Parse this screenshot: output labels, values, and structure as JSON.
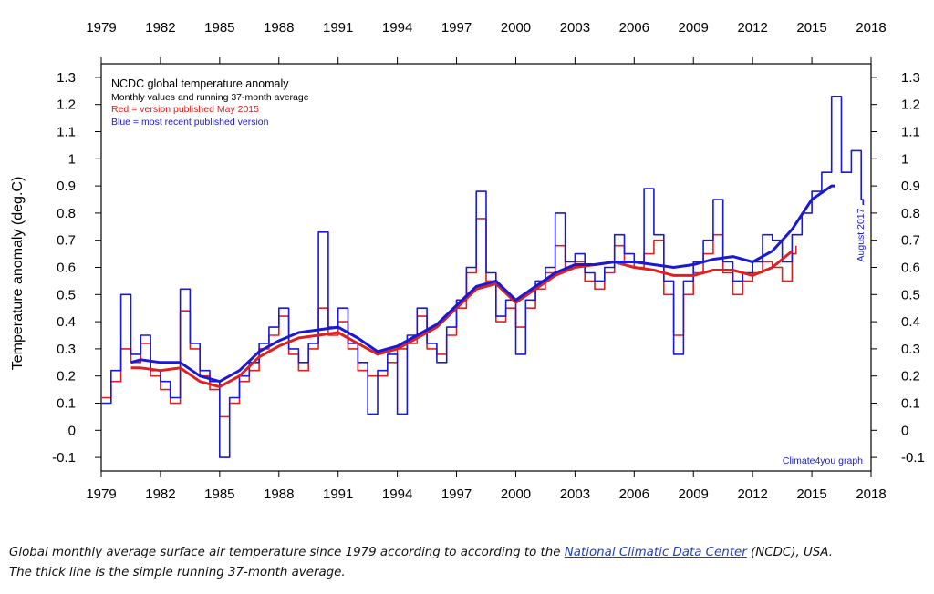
{
  "chart_data": {
    "type": "line",
    "title": "NCDC global temperature anomaly",
    "subtitle": "Monthly values and running 37-month average",
    "legend_notes": [
      {
        "text": "Red = version published May 2015",
        "color": "#e02020"
      },
      {
        "text": "Blue = most recent published version",
        "color": "#1a1ad6"
      }
    ],
    "ylabel": "Temperature anomaly (deg.C)",
    "xlim": [
      1979,
      2018
    ],
    "ylim": [
      -0.15,
      1.35
    ],
    "x_ticks": [
      1979,
      1982,
      1985,
      1988,
      1991,
      1994,
      1997,
      2000,
      2003,
      2006,
      2009,
      2012,
      2015,
      2018
    ],
    "x_tick_labels": [
      "1979",
      "1982",
      "1985",
      "1988",
      "1991",
      "1994",
      "1997",
      "2000",
      "2003",
      "2006",
      "2009",
      "2012",
      "2015",
      "2018"
    ],
    "y_ticks": [
      -0.1,
      0,
      0.1,
      0.2,
      0.3,
      0.4,
      0.5,
      0.6,
      0.7,
      0.8,
      0.9,
      1.0,
      1.1,
      1.2,
      1.3
    ],
    "y_tick_labels": [
      "-0.1",
      "0",
      "0.1",
      "0.2",
      "0.3",
      "0.4",
      "0.5",
      "0.6",
      "0.7",
      "0.8",
      "0.9",
      "1",
      "1.1",
      "1.2",
      "1.3"
    ],
    "grid": false,
    "end_label": "August 2017",
    "credit": "Climate4you graph",
    "series": [
      {
        "color": "#e02020",
        "style": "monthly",
        "x": [
          1979,
          1979.5,
          1980,
          1980.5,
          1981,
          1981.5,
          1982,
          1982.5,
          1983,
          1983.5,
          1984,
          1984.5,
          1985,
          1985.5,
          1986,
          1986.5,
          1987,
          1987.5,
          1988,
          1988.5,
          1989,
          1989.5,
          1990,
          1990.5,
          1991,
          1991.5,
          1992,
          1992.5,
          1993,
          1993.5,
          1994,
          1994.5,
          1995,
          1995.5,
          1996,
          1996.5,
          1997,
          1997.5,
          1998,
          1998.5,
          1999,
          1999.5,
          2000,
          2000.5,
          2001,
          2001.5,
          2002,
          2002.5,
          2003,
          2003.5,
          2004,
          2004.5,
          2005,
          2005.5,
          2006,
          2006.5,
          2007,
          2007.5,
          2008,
          2008.5,
          2009,
          2009.5,
          2010,
          2010.5,
          2011,
          2011.5,
          2012,
          2012.5,
          2013,
          2013.5,
          2014,
          2014.2
        ],
        "y": [
          0.12,
          0.18,
          0.3,
          0.25,
          0.32,
          0.2,
          0.15,
          0.1,
          0.44,
          0.3,
          0.2,
          0.15,
          0.05,
          0.1,
          0.18,
          0.22,
          0.3,
          0.35,
          0.42,
          0.28,
          0.22,
          0.3,
          0.45,
          0.35,
          0.4,
          0.3,
          0.22,
          0.2,
          0.2,
          0.25,
          0.3,
          0.32,
          0.42,
          0.3,
          0.28,
          0.35,
          0.45,
          0.58,
          0.78,
          0.55,
          0.4,
          0.45,
          0.38,
          0.45,
          0.52,
          0.58,
          0.68,
          0.6,
          0.62,
          0.55,
          0.52,
          0.58,
          0.68,
          0.62,
          0.6,
          0.65,
          0.7,
          0.5,
          0.35,
          0.5,
          0.58,
          0.65,
          0.72,
          0.58,
          0.5,
          0.55,
          0.58,
          0.62,
          0.6,
          0.55,
          0.65,
          0.68
        ]
      },
      {
        "color": "#1a1ad6",
        "style": "monthly",
        "x": [
          1979,
          1979.5,
          1980,
          1980.5,
          1981,
          1981.5,
          1982,
          1982.5,
          1983,
          1983.5,
          1984,
          1984.5,
          1985,
          1985.5,
          1986,
          1986.5,
          1987,
          1987.5,
          1988,
          1988.5,
          1989,
          1989.5,
          1990,
          1990.5,
          1991,
          1991.5,
          1992,
          1992.5,
          1993,
          1993.5,
          1994,
          1994.5,
          1995,
          1995.5,
          1996,
          1996.5,
          1997,
          1997.5,
          1998,
          1998.5,
          1999,
          1999.5,
          2000,
          2000.5,
          2001,
          2001.5,
          2002,
          2002.5,
          2003,
          2003.5,
          2004,
          2004.5,
          2005,
          2005.5,
          2006,
          2006.5,
          2007,
          2007.5,
          2008,
          2008.5,
          2009,
          2009.5,
          2010,
          2010.5,
          2011,
          2011.5,
          2012,
          2012.5,
          2013,
          2013.5,
          2014,
          2014.5,
          2015,
          2015.5,
          2016,
          2016.5,
          2017,
          2017.5,
          2017.6
        ],
        "y": [
          0.1,
          0.22,
          0.5,
          0.28,
          0.35,
          0.22,
          0.18,
          0.12,
          0.52,
          0.32,
          0.22,
          0.18,
          -0.1,
          0.12,
          0.2,
          0.25,
          0.32,
          0.38,
          0.45,
          0.3,
          0.25,
          0.32,
          0.73,
          0.38,
          0.45,
          0.32,
          0.25,
          0.06,
          0.22,
          0.28,
          0.06,
          0.35,
          0.45,
          0.32,
          0.25,
          0.38,
          0.48,
          0.6,
          0.88,
          0.58,
          0.42,
          0.48,
          0.28,
          0.48,
          0.55,
          0.6,
          0.8,
          0.62,
          0.65,
          0.58,
          0.55,
          0.6,
          0.72,
          0.65,
          0.62,
          0.89,
          0.72,
          0.55,
          0.28,
          0.55,
          0.62,
          0.7,
          0.85,
          0.62,
          0.55,
          0.58,
          0.62,
          0.72,
          0.7,
          0.62,
          0.72,
          0.8,
          0.88,
          0.95,
          1.23,
          0.95,
          1.03,
          0.85,
          0.83
        ]
      },
      {
        "color": "#e02020",
        "style": "running-37-month-average",
        "x": [
          1980.5,
          1981,
          1982,
          1983,
          1984,
          1985,
          1986,
          1987,
          1988,
          1989,
          1990,
          1991,
          1992,
          1993,
          1994,
          1995,
          1996,
          1997,
          1998,
          1999,
          2000,
          2001,
          2002,
          2003,
          2004,
          2005,
          2006,
          2007,
          2008,
          2009,
          2010,
          2011,
          2012,
          2013,
          2014
        ],
        "y": [
          0.23,
          0.23,
          0.22,
          0.23,
          0.18,
          0.16,
          0.2,
          0.27,
          0.31,
          0.34,
          0.35,
          0.36,
          0.32,
          0.28,
          0.3,
          0.34,
          0.38,
          0.45,
          0.52,
          0.54,
          0.47,
          0.52,
          0.57,
          0.6,
          0.61,
          0.62,
          0.6,
          0.59,
          0.57,
          0.57,
          0.59,
          0.59,
          0.57,
          0.6,
          0.66
        ]
      },
      {
        "color": "#1a1ad6",
        "style": "running-37-month-average",
        "x": [
          1980.5,
          1981,
          1982,
          1983,
          1984,
          1985,
          1986,
          1987,
          1988,
          1989,
          1990,
          1991,
          1992,
          1993,
          1994,
          1995,
          1996,
          1997,
          1998,
          1999,
          2000,
          2001,
          2002,
          2003,
          2004,
          2005,
          2006,
          2007,
          2008,
          2009,
          2010,
          2011,
          2012,
          2013,
          2014,
          2015,
          2016,
          2016.2
        ],
        "y": [
          0.25,
          0.26,
          0.25,
          0.25,
          0.2,
          0.18,
          0.22,
          0.29,
          0.33,
          0.36,
          0.37,
          0.38,
          0.34,
          0.29,
          0.31,
          0.35,
          0.39,
          0.46,
          0.53,
          0.55,
          0.48,
          0.53,
          0.58,
          0.61,
          0.61,
          0.62,
          0.62,
          0.61,
          0.6,
          0.61,
          0.63,
          0.64,
          0.62,
          0.66,
          0.74,
          0.85,
          0.9,
          0.9
        ]
      }
    ]
  },
  "caption": {
    "line1_before": "Global monthly average surface air temperature since 1979 according to according to the ",
    "link_text": "National Climatic Data Center",
    "line1_after": " (NCDC), USA.",
    "line2": "The thick line is the simple running 37-month average."
  }
}
